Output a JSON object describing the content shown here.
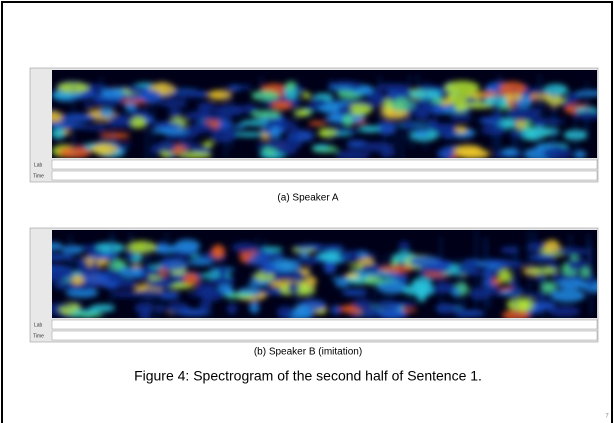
{
  "figures": [
    {
      "caption": "(a) Speaker A",
      "label_row": "Lab",
      "time_row": "Time"
    },
    {
      "caption": "(b) Speaker B (imitation)",
      "label_row": "Lab",
      "time_row": "Time"
    }
  ],
  "figure_caption": "Figure 4: Spectrogram of the second half of Sentence 1.",
  "page_number": "7"
}
